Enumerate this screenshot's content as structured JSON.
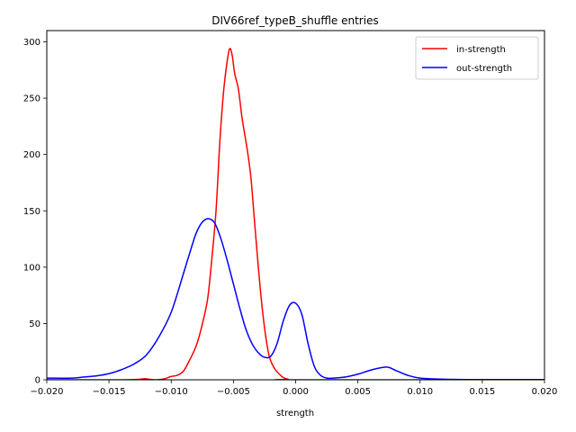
{
  "chart_data": {
    "type": "line",
    "title": "DIV66ref_typeB_shuffle entries",
    "xlabel": "strength",
    "ylabel": "",
    "xlim": [
      -0.02,
      0.02
    ],
    "ylim": [
      0,
      310
    ],
    "x_ticks": [
      -0.02,
      -0.015,
      -0.01,
      -0.005,
      0.0,
      0.005,
      0.01,
      0.015,
      0.02
    ],
    "x_tick_labels": [
      "−0.020",
      "−0.015",
      "−0.010",
      "−0.005",
      "0.000",
      "0.005",
      "0.010",
      "0.015",
      "0.020"
    ],
    "y_ticks": [
      0,
      50,
      100,
      150,
      200,
      250,
      300
    ],
    "y_tick_labels": [
      "0",
      "50",
      "100",
      "150",
      "200",
      "250",
      "300"
    ],
    "grid": false,
    "legend_position": "top-right",
    "series": [
      {
        "name": "in-strength",
        "color": "#ff0000",
        "points": [
          [
            -0.02,
            0
          ],
          [
            -0.014,
            0
          ],
          [
            -0.0125,
            0.5
          ],
          [
            -0.0121,
            1
          ],
          [
            -0.0118,
            0.5
          ],
          [
            -0.0112,
            0
          ],
          [
            -0.0105,
            1
          ],
          [
            -0.01,
            3
          ],
          [
            -0.0095,
            4
          ],
          [
            -0.009,
            8
          ],
          [
            -0.0085,
            18
          ],
          [
            -0.008,
            30
          ],
          [
            -0.0076,
            45
          ],
          [
            -0.0071,
            70
          ],
          [
            -0.0068,
            100
          ],
          [
            -0.0064,
            150
          ],
          [
            -0.0061,
            210
          ],
          [
            -0.0058,
            255
          ],
          [
            -0.0055,
            283
          ],
          [
            -0.0053,
            294
          ],
          [
            -0.0051,
            288
          ],
          [
            -0.0049,
            272
          ],
          [
            -0.0046,
            258
          ],
          [
            -0.0043,
            232
          ],
          [
            -0.0039,
            205
          ],
          [
            -0.0036,
            180
          ],
          [
            -0.0033,
            140
          ],
          [
            -0.003,
            100
          ],
          [
            -0.0027,
            65
          ],
          [
            -0.0024,
            38
          ],
          [
            -0.0021,
            20
          ],
          [
            -0.0017,
            10
          ],
          [
            -0.0013,
            5
          ],
          [
            -0.001,
            2
          ],
          [
            -0.0006,
            0.5
          ],
          [
            0.0,
            0
          ],
          [
            0.02,
            0
          ]
        ]
      },
      {
        "name": "out-strength",
        "color": "#0000ff",
        "points": [
          [
            -0.02,
            1.5
          ],
          [
            -0.018,
            1.5
          ],
          [
            -0.017,
            2.5
          ],
          [
            -0.016,
            3.5
          ],
          [
            -0.015,
            5.5
          ],
          [
            -0.014,
            9
          ],
          [
            -0.013,
            14
          ],
          [
            -0.012,
            22
          ],
          [
            -0.011,
            38
          ],
          [
            -0.01,
            60
          ],
          [
            -0.009,
            95
          ],
          [
            -0.0085,
            113
          ],
          [
            -0.008,
            130
          ],
          [
            -0.0075,
            140
          ],
          [
            -0.007,
            143
          ],
          [
            -0.0065,
            139
          ],
          [
            -0.006,
            125
          ],
          [
            -0.0055,
            106
          ],
          [
            -0.005,
            85
          ],
          [
            -0.0045,
            64
          ],
          [
            -0.004,
            45
          ],
          [
            -0.0035,
            32
          ],
          [
            -0.003,
            24
          ],
          [
            -0.0025,
            20
          ],
          [
            -0.002,
            21
          ],
          [
            -0.0015,
            32
          ],
          [
            -0.001,
            52
          ],
          [
            -0.0005,
            66
          ],
          [
            0.0,
            68
          ],
          [
            0.0005,
            58
          ],
          [
            0.001,
            32
          ],
          [
            0.0015,
            12
          ],
          [
            0.002,
            4
          ],
          [
            0.0025,
            1.5
          ],
          [
            0.003,
            1.5
          ],
          [
            0.004,
            2.5
          ],
          [
            0.005,
            5
          ],
          [
            0.006,
            8.5
          ],
          [
            0.007,
            11
          ],
          [
            0.0075,
            11
          ],
          [
            0.008,
            8.5
          ],
          [
            0.009,
            4
          ],
          [
            0.01,
            1.5
          ],
          [
            0.012,
            0.5
          ],
          [
            0.015,
            0.2
          ],
          [
            0.02,
            0.2
          ]
        ]
      }
    ]
  }
}
